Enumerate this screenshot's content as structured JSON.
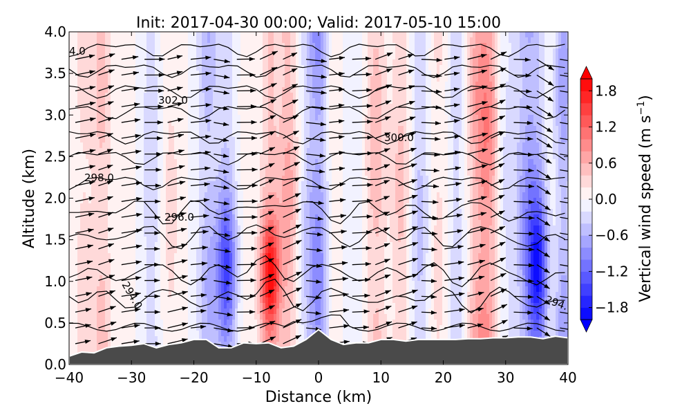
{
  "chart_data": {
    "type": "heatmap",
    "title": "Init: 2017-04-30 00:00; Valid: 2017-05-10 15:00",
    "xlabel": "Distance (km)",
    "ylabel": "Altitude (km)",
    "xlim": [
      -40,
      40
    ],
    "ylim": [
      0.0,
      4.0
    ],
    "xticks": [
      "−40",
      "−30",
      "−20",
      "−10",
      "0",
      "10",
      "20",
      "30",
      "40"
    ],
    "xtick_values": [
      -40,
      -30,
      -20,
      -10,
      0,
      10,
      20,
      30,
      40
    ],
    "yticks": [
      "0.0",
      "0.5",
      "1.0",
      "1.5",
      "2.0",
      "2.5",
      "3.0",
      "3.5",
      "4.0"
    ],
    "ytick_values": [
      0.0,
      0.5,
      1.0,
      1.5,
      2.0,
      2.5,
      3.0,
      3.5,
      4.0
    ],
    "colorbar": {
      "label": "Vertical wind speed (m s",
      "label_sup": "−1",
      "label_end": ")",
      "range": [
        -2.0,
        2.0
      ],
      "extend": "both",
      "ticks": [
        "−1.8",
        "−1.2",
        "−0.6",
        "0.0",
        "0.6",
        "1.2",
        "1.8"
      ],
      "tick_values": [
        -1.8,
        -1.2,
        -0.6,
        0.0,
        0.6,
        1.2,
        1.8
      ],
      "levels": 20,
      "cmap": "bwr"
    },
    "vertical_wind_columns": {
      "x_km": [
        -38,
        -35,
        -31,
        -27,
        -24,
        -21,
        -18,
        -15,
        -12,
        -8,
        -5,
        -2,
        0,
        2,
        5,
        9,
        13,
        16,
        19,
        22,
        25,
        27,
        30,
        33,
        35,
        37,
        39
      ],
      "w_ms": [
        0.3,
        0.5,
        0.1,
        -0.4,
        0.3,
        0.0,
        -0.6,
        -1.3,
        0.1,
        1.6,
        0.7,
        -0.4,
        -0.9,
        0.3,
        -0.2,
        0.6,
        0.5,
        -0.5,
        0.3,
        -0.4,
        0.6,
        0.9,
        -0.3,
        -0.7,
        -1.6,
        0.2,
        -0.8
      ]
    },
    "theta_contour_labels": [
      "4.0",
      "302.0",
      "300.0",
      "298.0",
      "296.0",
      "294.0",
      "294."
    ],
    "theta_contours": {
      "levels_K": [
        294,
        295,
        296,
        297,
        298,
        299,
        300,
        301,
        302,
        303,
        304
      ],
      "base_altitude_km": [
        0.8,
        1.1,
        1.55,
        1.85,
        2.2,
        2.5,
        2.75,
        3.05,
        3.3,
        3.55,
        3.8
      ]
    },
    "terrain": {
      "x_km": [
        -40,
        -38,
        -36,
        -34,
        -32,
        -30,
        -28,
        -26,
        -24,
        -22,
        -20,
        -18,
        -16,
        -14,
        -12,
        -10,
        -8,
        -6,
        -4,
        -2,
        0,
        2,
        4,
        6,
        8,
        10,
        12,
        14,
        16,
        18,
        20,
        22,
        24,
        26,
        28,
        30,
        32,
        34,
        36,
        38,
        40
      ],
      "height_km": [
        0.1,
        0.15,
        0.14,
        0.2,
        0.22,
        0.23,
        0.25,
        0.2,
        0.24,
        0.26,
        0.3,
        0.3,
        0.2,
        0.2,
        0.26,
        0.25,
        0.26,
        0.2,
        0.22,
        0.3,
        0.42,
        0.3,
        0.24,
        0.26,
        0.26,
        0.3,
        0.3,
        0.28,
        0.3,
        0.3,
        0.3,
        0.3,
        0.31,
        0.31,
        0.32,
        0.32,
        0.33,
        0.33,
        0.31,
        0.34,
        0.32
      ]
    },
    "grid": false
  },
  "colors": {
    "terrain": "#4a4a4a",
    "positive": "#ff0000",
    "negative": "#0000ff"
  }
}
